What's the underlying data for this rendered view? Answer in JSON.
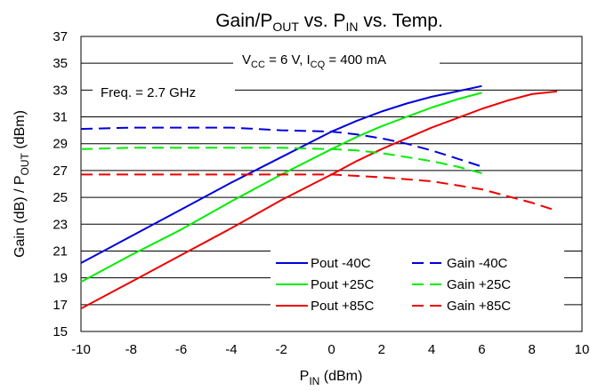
{
  "chart_data": {
    "type": "line",
    "title": {
      "main": "Gain/P",
      "sub1": "OUT",
      "mid1": " vs. P",
      "sub2": "IN",
      "end": " vs. Temp."
    },
    "xlabel": {
      "main": "P",
      "sub": "IN",
      "end": " (dBm)"
    },
    "ylabel": {
      "a": "Gain (dB) / P",
      "sub": "OUT",
      "b": " (dBm)"
    },
    "xlim": [
      -10,
      10
    ],
    "ylim": [
      15,
      37
    ],
    "xticks": [
      -10,
      -8,
      -6,
      -4,
      -2,
      0,
      2,
      4,
      6,
      8,
      10
    ],
    "yticks": [
      15,
      17,
      19,
      21,
      23,
      25,
      27,
      29,
      31,
      33,
      35,
      37
    ],
    "grid": "horizontal",
    "annotations": {
      "conditions": {
        "v": "V",
        "vsub": "CC",
        "vval": " = 6 V, I",
        "isub": "CQ",
        "ival": " = 400 mA"
      },
      "freq": "Freq. = 2.7 GHz"
    },
    "legend_position": "bottom-right",
    "series": [
      {
        "name": "Pout -40C",
        "color": "#0000dd",
        "dash": "solid",
        "points": [
          [
            -10,
            20.1
          ],
          [
            -8,
            22.1
          ],
          [
            -6,
            24.1
          ],
          [
            -4,
            26.1
          ],
          [
            -2,
            28.0
          ],
          [
            0,
            29.9
          ],
          [
            1,
            30.7
          ],
          [
            2,
            31.4
          ],
          [
            3,
            32.0
          ],
          [
            4,
            32.5
          ],
          [
            5,
            32.9
          ],
          [
            6,
            33.3
          ]
        ]
      },
      {
        "name": "Pout +25C",
        "color": "#00ee00",
        "dash": "solid",
        "points": [
          [
            -10,
            18.7
          ],
          [
            -8,
            20.7
          ],
          [
            -6,
            22.6
          ],
          [
            -4,
            24.7
          ],
          [
            -2,
            26.7
          ],
          [
            0,
            28.6
          ],
          [
            1,
            29.5
          ],
          [
            2,
            30.3
          ],
          [
            3,
            31.0
          ],
          [
            4,
            31.7
          ],
          [
            5,
            32.3
          ],
          [
            6,
            32.8
          ]
        ]
      },
      {
        "name": "Pout +85C",
        "color": "#ee0000",
        "dash": "solid",
        "points": [
          [
            -10,
            16.7
          ],
          [
            -8,
            18.7
          ],
          [
            -6,
            20.7
          ],
          [
            -4,
            22.7
          ],
          [
            -2,
            24.8
          ],
          [
            0,
            26.7
          ],
          [
            1,
            27.7
          ],
          [
            2,
            28.6
          ],
          [
            3,
            29.4
          ],
          [
            4,
            30.2
          ],
          [
            5,
            30.9
          ],
          [
            6,
            31.6
          ],
          [
            7,
            32.2
          ],
          [
            8,
            32.7
          ],
          [
            9,
            32.9
          ]
        ]
      },
      {
        "name": "Gain -40C",
        "color": "#0000dd",
        "dash": "dashed",
        "points": [
          [
            -10,
            30.1
          ],
          [
            -8,
            30.2
          ],
          [
            -6,
            30.2
          ],
          [
            -4,
            30.2
          ],
          [
            -2,
            30.0
          ],
          [
            0,
            29.9
          ],
          [
            1,
            29.7
          ],
          [
            2,
            29.4
          ],
          [
            3,
            29.0
          ],
          [
            4,
            28.5
          ],
          [
            5,
            27.9
          ],
          [
            6,
            27.3
          ]
        ]
      },
      {
        "name": "Gain +25C",
        "color": "#00ee00",
        "dash": "dashed",
        "points": [
          [
            -10,
            28.6
          ],
          [
            -8,
            28.7
          ],
          [
            -6,
            28.7
          ],
          [
            -4,
            28.7
          ],
          [
            -2,
            28.7
          ],
          [
            0,
            28.6
          ],
          [
            1,
            28.5
          ],
          [
            2,
            28.3
          ],
          [
            3,
            28.0
          ],
          [
            4,
            27.7
          ],
          [
            5,
            27.3
          ],
          [
            6,
            26.8
          ]
        ]
      },
      {
        "name": "Gain +85C",
        "color": "#ee0000",
        "dash": "dashed",
        "points": [
          [
            -10,
            26.7
          ],
          [
            -8,
            26.7
          ],
          [
            -6,
            26.7
          ],
          [
            -4,
            26.7
          ],
          [
            -2,
            26.7
          ],
          [
            0,
            26.7
          ],
          [
            2,
            26.5
          ],
          [
            4,
            26.2
          ],
          [
            5,
            25.9
          ],
          [
            6,
            25.6
          ],
          [
            7,
            25.1
          ],
          [
            8,
            24.6
          ],
          [
            9,
            24.0
          ]
        ]
      }
    ]
  }
}
